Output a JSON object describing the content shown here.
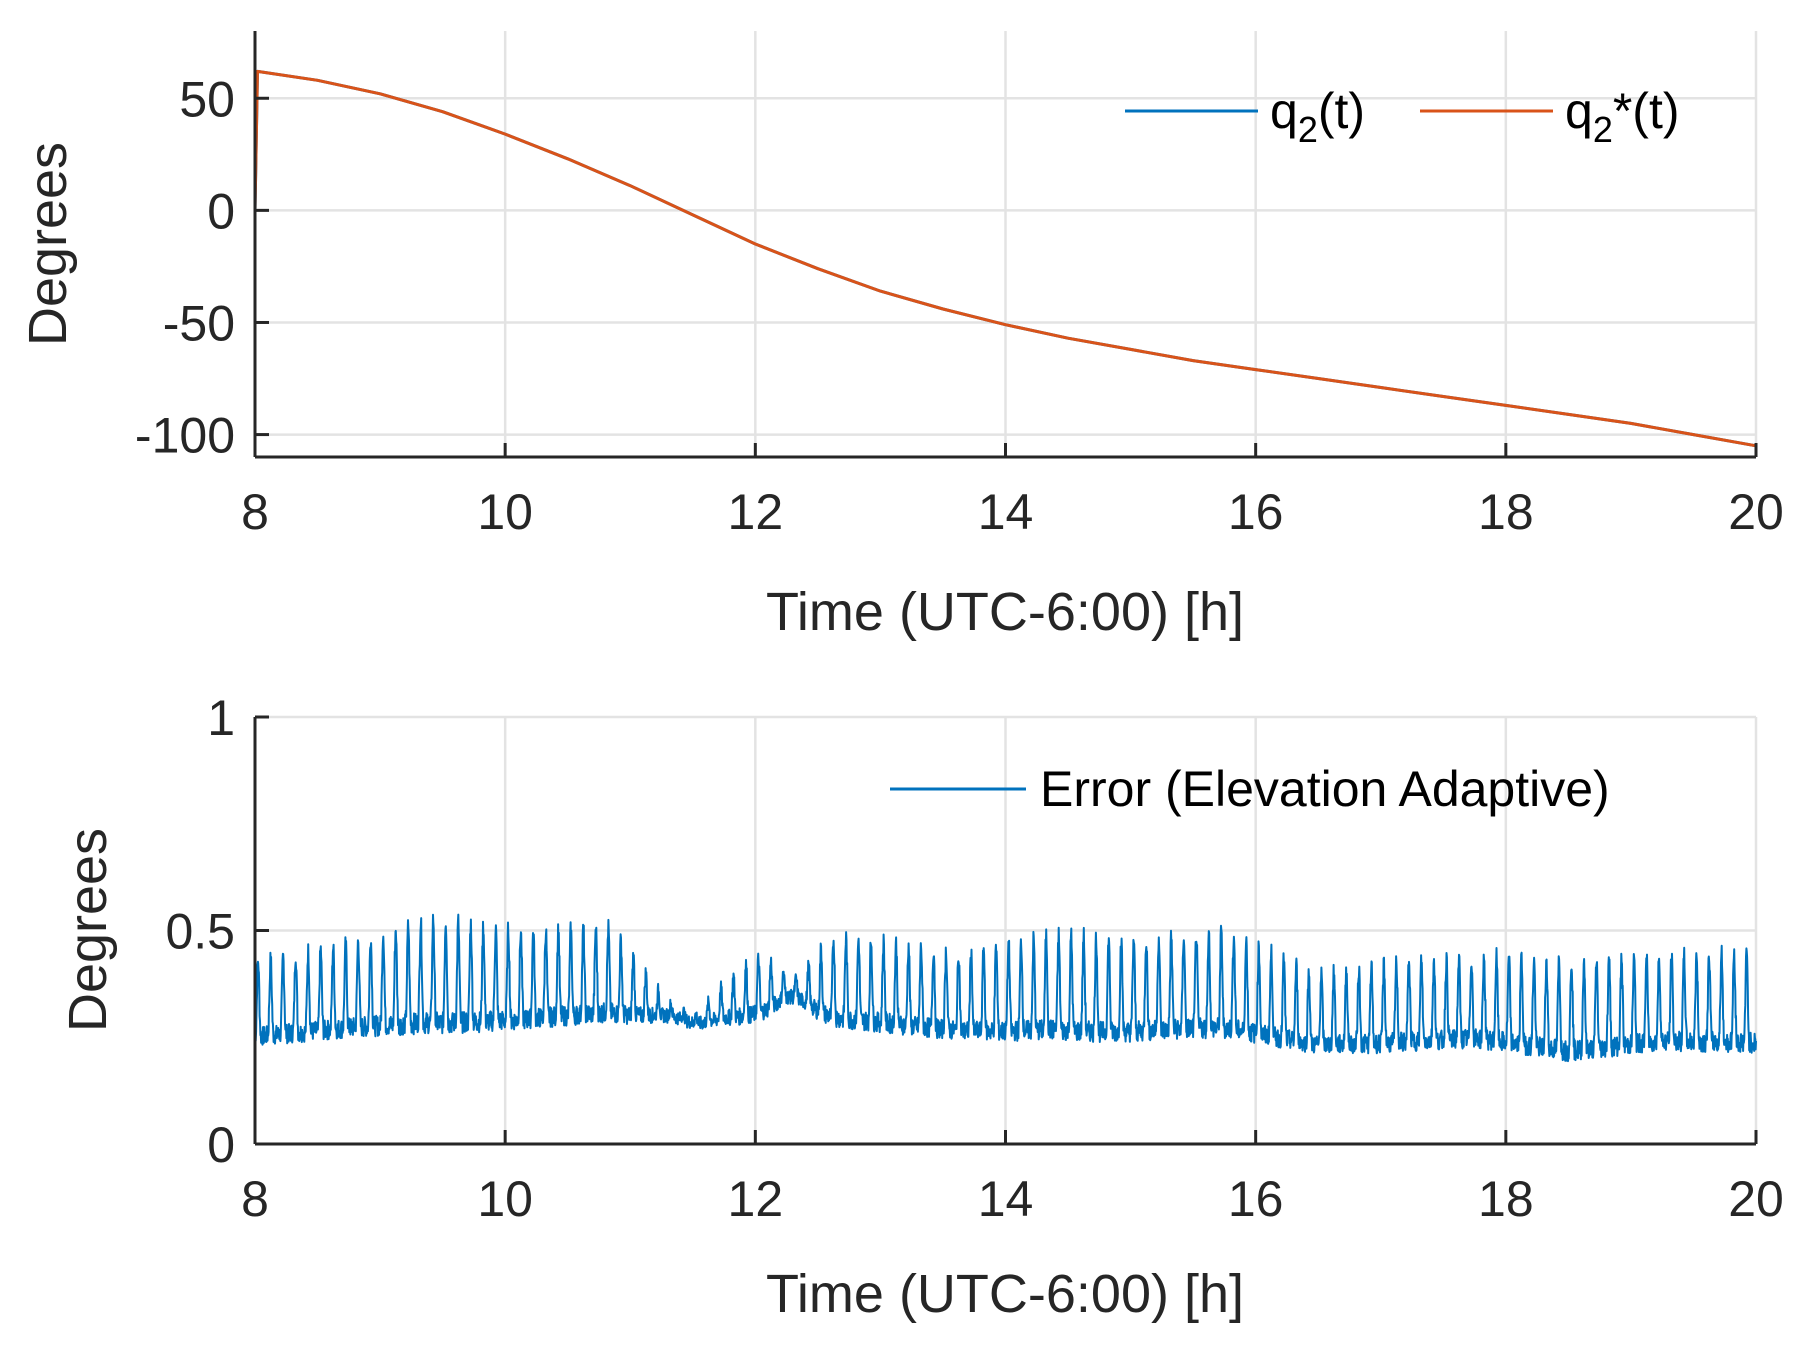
{
  "colors": {
    "q2": "#0072BD",
    "q2_star": "#D95319",
    "error": "#0072BD"
  },
  "chart_data": [
    {
      "type": "line",
      "title": "",
      "xlabel": "Time (UTC-6:00) [h]",
      "ylabel": "Degrees",
      "xlim": [
        8,
        20
      ],
      "ylim": [
        -110,
        80
      ],
      "grid": true,
      "legend_position": "top-right",
      "x_ticks": [
        8,
        10,
        12,
        14,
        16,
        18,
        20
      ],
      "x_tick_labels": [
        "8",
        "10",
        "12",
        "14",
        "16",
        "18",
        "20"
      ],
      "y_ticks": [
        50,
        0,
        -50,
        -100
      ],
      "y_tick_labels": [
        "50",
        "0",
        "-50",
        "-100"
      ],
      "legend": [
        {
          "base": "q",
          "sub": "2",
          "suffix": "(t)"
        },
        {
          "base": "q",
          "sub": "2",
          "suffix": "*(t)"
        }
      ],
      "series": [
        {
          "name": "q2(t)",
          "x": [
            8,
            8.02,
            8.5,
            9,
            9.5,
            10,
            10.5,
            11,
            11.5,
            12,
            12.5,
            13,
            13.5,
            14,
            14.5,
            15,
            15.5,
            16,
            16.5,
            17,
            17.5,
            18,
            18.5,
            19,
            19.5,
            20
          ],
          "values": [
            0,
            62,
            58,
            52,
            44,
            34,
            23,
            11,
            -2,
            -15,
            -26,
            -36,
            -44,
            -51,
            -57,
            -62,
            -67,
            -71,
            -75,
            -79,
            -83,
            -87,
            -91,
            -95,
            -100,
            -105
          ]
        },
        {
          "name": "q2*(t)",
          "x": [
            8,
            8.02,
            8.5,
            9,
            9.5,
            10,
            10.5,
            11,
            11.5,
            12,
            12.5,
            13,
            13.5,
            14,
            14.5,
            15,
            15.5,
            16,
            16.5,
            17,
            17.5,
            18,
            18.5,
            19,
            19.5,
            20
          ],
          "values": [
            0,
            62,
            58,
            52,
            44,
            34,
            23,
            11,
            -2,
            -15,
            -26,
            -36,
            -44,
            -51,
            -57,
            -62,
            -67,
            -71,
            -75,
            -79,
            -83,
            -87,
            -91,
            -95,
            -100,
            -105
          ]
        }
      ]
    },
    {
      "type": "line",
      "title": "",
      "xlabel": "Time (UTC-6:00) [h]",
      "ylabel": "Degrees",
      "xlim": [
        8,
        20
      ],
      "ylim": [
        0,
        1
      ],
      "grid": true,
      "legend_position": "top-right",
      "x_ticks": [
        8,
        10,
        12,
        14,
        16,
        18,
        20
      ],
      "x_tick_labels": [
        "8",
        "10",
        "12",
        "14",
        "16",
        "18",
        "20"
      ],
      "y_ticks": [
        1,
        0.5,
        0
      ],
      "y_tick_labels": [
        "1",
        "0.5",
        "0"
      ],
      "legend": [
        {
          "text": "Error (Elevation Adaptive)"
        }
      ],
      "series": [
        {
          "name": "Error (Elevation Adaptive)",
          "x_start": 8,
          "x_end": 20,
          "oscillation_period_h": 0.1,
          "baseline_approx": 0.27,
          "peak_values_approx": [
            0.45,
            0.49,
            0.55,
            0.52,
            0.53,
            0.36,
            0.52,
            0.5,
            0.47,
            0.51,
            0.5,
            0.52,
            0.42,
            0.45,
            0.46,
            0.45,
            0.46,
            0.47
          ],
          "trough_values_approx": [
            0.2,
            0.21,
            0.2,
            0.23,
            0.25,
            0.28,
            0.24,
            0.22,
            0.2,
            0.19,
            0.2,
            0.19,
            0.18,
            0.19,
            0.15,
            0.18,
            0.17
          ]
        }
      ]
    }
  ]
}
